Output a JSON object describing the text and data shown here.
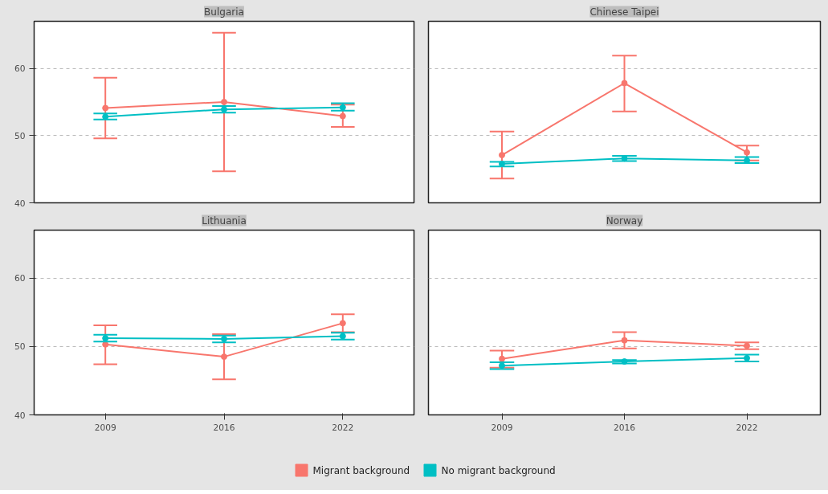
{
  "chart_data": [
    {
      "type": "line",
      "title": "Bulgaria",
      "categories": [
        "2009",
        "2016",
        "2022"
      ],
      "ylim": [
        40,
        67
      ],
      "yticks": [
        40,
        50,
        60
      ],
      "grid": "y",
      "marker": "circle",
      "legend": "bottom",
      "tick_labels": "y",
      "series": [
        {
          "name": "Migrant background",
          "color": "#f8766d",
          "values": [
            54.1,
            55.0,
            52.9
          ],
          "errors": [
            [
              49.6,
              58.6
            ],
            [
              44.7,
              65.3
            ],
            [
              51.3,
              54.6
            ]
          ]
        },
        {
          "name": "No migrant background",
          "color": "#00bfc4",
          "values": [
            52.8,
            53.9,
            54.2
          ],
          "errors": [
            [
              52.4,
              53.3
            ],
            [
              53.4,
              54.4
            ],
            [
              53.7,
              54.8
            ]
          ]
        }
      ]
    },
    {
      "type": "line",
      "title": "Chinese Taipei",
      "categories": [
        "2009",
        "2016",
        "2022"
      ],
      "ylim": [
        40,
        67
      ],
      "yticks": [
        40,
        50,
        60
      ],
      "grid": "y",
      "marker": "circle",
      "legend": "bottom",
      "tick_labels": false,
      "series": [
        {
          "color": "#f8766d",
          "values": [
            47.1,
            57.8,
            47.5
          ],
          "errors": [
            [
              43.6,
              50.6
            ],
            [
              53.6,
              61.9
            ],
            [
              46.3,
              48.5
            ]
          ]
        },
        {
          "color": "#00bfc4",
          "values": [
            45.8,
            46.6,
            46.3
          ],
          "errors": [
            [
              45.4,
              46.1
            ],
            [
              46.2,
              47.0
            ],
            [
              45.9,
              46.8
            ]
          ]
        }
      ]
    },
    {
      "type": "line",
      "title": "Lithuania",
      "categories": [
        "2009",
        "2016",
        "2022"
      ],
      "ylim": [
        40,
        67
      ],
      "yticks": [
        40,
        50,
        60
      ],
      "grid": "y",
      "marker": "circle",
      "legend": "bottom",
      "series": [
        {
          "color": "#f8766d",
          "values": [
            50.3,
            48.5,
            53.4
          ],
          "errors": [
            [
              47.4,
              53.1
            ],
            [
              45.2,
              51.8
            ],
            [
              52.1,
              54.7
            ]
          ]
        },
        {
          "color": "#00bfc4",
          "values": [
            51.2,
            51.1,
            51.5
          ],
          "errors": [
            [
              50.7,
              51.7
            ],
            [
              50.6,
              51.6
            ],
            [
              51.0,
              52.0
            ]
          ]
        }
      ]
    },
    {
      "type": "line",
      "title": "Norway",
      "categories": [
        "2009",
        "2016",
        "2022"
      ],
      "ylim": [
        40,
        67
      ],
      "yticks": [
        40,
        50,
        60
      ],
      "grid": "y",
      "marker": "circle",
      "legend": "bottom",
      "tick_labels": "x",
      "series": [
        {
          "color": "#f8766d",
          "values": [
            48.2,
            50.9,
            50.1
          ],
          "errors": [
            [
              46.9,
              49.4
            ],
            [
              49.7,
              52.1
            ],
            [
              49.6,
              50.6
            ]
          ]
        },
        {
          "color": "#00bfc4",
          "values": [
            47.2,
            47.8,
            48.3
          ],
          "errors": [
            [
              46.7,
              47.7
            ],
            [
              47.5,
              48.0
            ],
            [
              47.8,
              48.8
            ]
          ]
        }
      ]
    }
  ]
}
